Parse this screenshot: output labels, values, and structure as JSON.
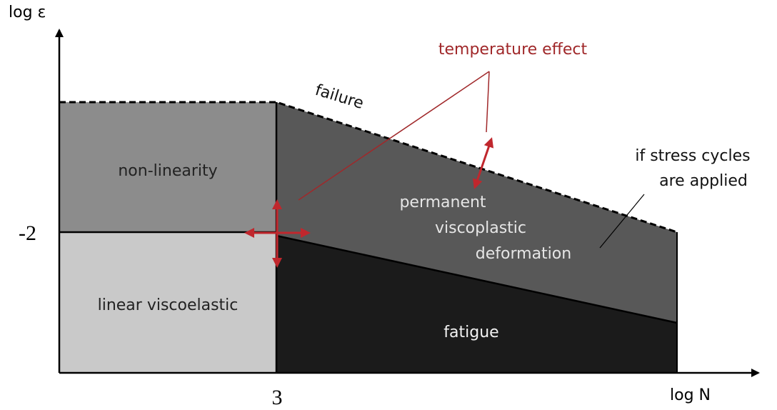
{
  "axes": {
    "y_label": "log ε",
    "x_label": "log N",
    "y_tick": "-2",
    "x_tick": "3"
  },
  "regions": {
    "non_linearity": "non-linearity",
    "linear": "linear viscoelastic",
    "permanent": [
      "permanent",
      "viscoplastic",
      "deformation"
    ],
    "fatigue": "fatigue"
  },
  "annotations": {
    "failure": "failure",
    "temperature": "temperature effect",
    "stress": [
      "if stress cycles",
      "are applied"
    ]
  }
}
